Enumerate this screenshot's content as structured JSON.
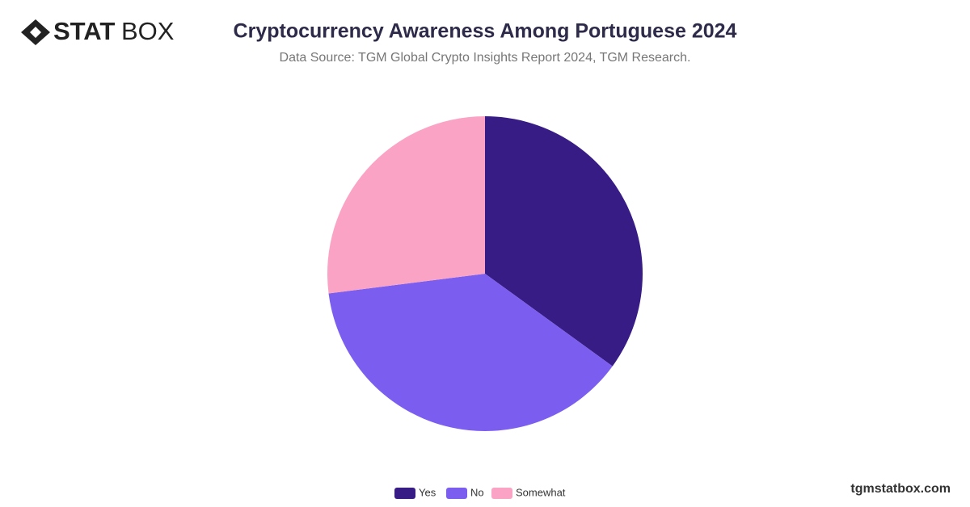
{
  "logo": {
    "bold": "STAT",
    "light": "BOX"
  },
  "footer": "tgmstatbox.com",
  "chart_data": {
    "type": "pie",
    "title": "Cryptocurrency Awareness Among Portuguese 2024",
    "subtitle": "Data Source: TGM Global Crypto Insights Report 2024, TGM Research.",
    "categories": [
      "Yes",
      "No",
      "Somewhat"
    ],
    "values": [
      35,
      38,
      27
    ],
    "colors": [
      "#371c85",
      "#7b5ef0",
      "#fba3c4"
    ],
    "legend": "bottom"
  }
}
